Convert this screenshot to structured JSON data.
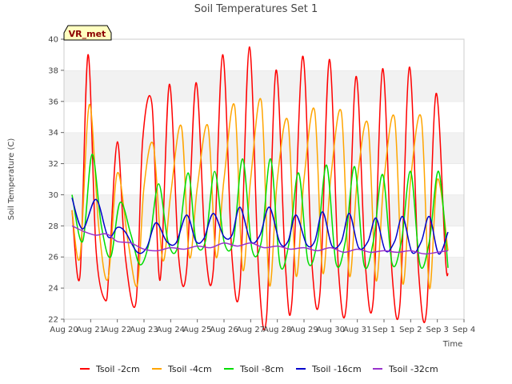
{
  "chart_data": {
    "type": "line",
    "title": "Soil Temperatures Set 1",
    "xlabel": "Time",
    "ylabel": "Soil Temperature (C)",
    "ylim": [
      22,
      40
    ],
    "yticks": [
      22,
      24,
      26,
      28,
      30,
      32,
      34,
      36,
      38,
      40
    ],
    "xlim": [
      0,
      15
    ],
    "xtick_labels": [
      "Aug 20",
      "Aug 21",
      "Aug 22",
      "Aug 23",
      "Aug 24",
      "Aug 25",
      "Aug 26",
      "Aug 27",
      "Aug 28",
      "Aug 29",
      "Aug 30",
      "Aug 31",
      "Sep 1",
      "Sep 2",
      "Sep 3",
      "Sep 4"
    ],
    "grid": "horizontal bands",
    "legend_position": "bottom",
    "annotation": "VR_met",
    "x_units": "days since Aug 20",
    "series": [
      {
        "name": "Tsoil -2cm",
        "color": "#ff0000",
        "x": [
          0.3,
          0.6,
          0.9,
          1.2,
          1.55,
          1.7,
          2.0,
          2.3,
          2.7,
          2.95,
          3.3,
          3.6,
          3.95,
          4.3,
          4.6,
          4.95,
          5.3,
          5.6,
          5.95,
          6.3,
          6.6,
          6.95,
          7.3,
          7.6,
          7.95,
          8.3,
          8.55,
          8.95,
          9.3,
          9.6,
          9.95,
          10.3,
          10.6,
          10.95,
          11.3,
          11.6,
          11.95,
          12.3,
          12.6,
          12.95,
          13.3,
          13.6,
          13.95,
          14.3,
          14.4
        ],
        "values": [
          29.0,
          24.8,
          39.0,
          26.5,
          23.2,
          25.5,
          33.4,
          26.0,
          23.1,
          33.5,
          35.8,
          24.5,
          37.1,
          26.0,
          25.2,
          37.2,
          26.5,
          25.2,
          39.0,
          26.0,
          24.2,
          39.5,
          25.0,
          22.2,
          38.0,
          25.5,
          23.2,
          38.9,
          25.5,
          23.7,
          38.7,
          25.0,
          23.1,
          37.6,
          25.5,
          23.3,
          38.1,
          25.0,
          23.0,
          38.2,
          25.0,
          22.6,
          36.5,
          26.0,
          24.9
        ]
      },
      {
        "name": "Tsoil -4cm",
        "color": "#ffa500",
        "x": [
          0.3,
          0.6,
          0.95,
          1.3,
          1.65,
          2.0,
          2.4,
          2.75,
          3.0,
          3.35,
          3.7,
          4.0,
          4.4,
          4.7,
          5.0,
          5.4,
          5.7,
          6.0,
          6.4,
          6.7,
          7.0,
          7.4,
          7.7,
          8.0,
          8.4,
          8.7,
          9.0,
          9.4,
          9.7,
          10.0,
          10.4,
          10.7,
          11.0,
          11.4,
          11.7,
          12.0,
          12.4,
          12.7,
          13.0,
          13.4,
          13.7,
          14.0,
          14.4
        ],
        "values": [
          29.0,
          26.0,
          35.8,
          28.0,
          24.6,
          31.4,
          27.0,
          24.2,
          30.5,
          33.2,
          25.8,
          30.0,
          34.4,
          26.0,
          30.5,
          34.4,
          26.0,
          31.0,
          35.7,
          25.2,
          31.0,
          36.0,
          24.2,
          31.0,
          34.7,
          24.8,
          31.0,
          35.4,
          25.0,
          31.0,
          35.3,
          24.8,
          31.0,
          34.5,
          24.5,
          31.0,
          34.9,
          24.3,
          31.0,
          34.9,
          24.0,
          31.0,
          26.4
        ]
      },
      {
        "name": "Tsoil -8cm",
        "color": "#00dd00",
        "x": [
          0.3,
          0.7,
          1.05,
          1.4,
          1.75,
          2.1,
          2.5,
          2.85,
          3.2,
          3.55,
          3.9,
          4.25,
          4.65,
          4.95,
          5.3,
          5.65,
          6.0,
          6.35,
          6.7,
          7.05,
          7.4,
          7.75,
          8.1,
          8.45,
          8.8,
          9.15,
          9.5,
          9.85,
          10.2,
          10.55,
          10.9,
          11.25,
          11.6,
          11.95,
          12.3,
          12.65,
          13.0,
          13.35,
          13.7,
          14.05,
          14.4
        ],
        "values": [
          30.0,
          27.0,
          32.6,
          28.0,
          26.0,
          29.5,
          27.5,
          25.5,
          27.0,
          30.7,
          27.0,
          26.6,
          31.4,
          27.0,
          27.0,
          31.5,
          27.0,
          27.0,
          32.3,
          26.5,
          27.0,
          32.3,
          25.5,
          27.0,
          31.4,
          25.7,
          27.0,
          31.9,
          25.6,
          27.0,
          31.8,
          25.5,
          27.0,
          31.3,
          25.6,
          27.0,
          31.5,
          25.5,
          27.0,
          31.5,
          25.3
        ]
      },
      {
        "name": "Tsoil -16cm",
        "color": "#0000cc",
        "x": [
          0.3,
          0.7,
          1.2,
          1.65,
          2.0,
          2.3,
          2.75,
          3.1,
          3.45,
          3.85,
          4.2,
          4.6,
          4.95,
          5.25,
          5.6,
          6.0,
          6.3,
          6.6,
          7.0,
          7.35,
          7.7,
          8.1,
          8.4,
          8.7,
          9.1,
          9.4,
          9.7,
          10.05,
          10.4,
          10.7,
          11.05,
          11.4,
          11.7,
          12.05,
          12.4,
          12.7,
          13.05,
          13.4,
          13.7,
          14.05,
          14.4
        ],
        "values": [
          29.8,
          27.8,
          29.7,
          27.3,
          27.9,
          27.6,
          26.3,
          26.6,
          28.2,
          27.0,
          26.9,
          28.7,
          27.0,
          27.2,
          28.8,
          27.3,
          27.4,
          29.2,
          27.0,
          27.4,
          29.2,
          26.9,
          27.0,
          28.7,
          26.8,
          27.0,
          28.9,
          26.7,
          27.0,
          28.8,
          26.6,
          27.0,
          28.5,
          26.4,
          27.0,
          28.6,
          26.3,
          27.0,
          28.6,
          26.2,
          27.6
        ]
      },
      {
        "name": "Tsoil -32cm",
        "color": "#9932cc",
        "x": [
          0.3,
          0.8,
          1.2,
          1.5,
          1.7,
          2.0,
          2.5,
          3.0,
          3.5,
          4.0,
          4.5,
          5.0,
          5.5,
          6.0,
          6.5,
          7.0,
          7.5,
          8.0,
          8.5,
          9.0,
          9.5,
          10.0,
          10.5,
          11.0,
          11.5,
          12.0,
          12.5,
          13.0,
          13.5,
          14.0,
          14.4
        ],
        "values": [
          28.0,
          27.6,
          27.4,
          27.5,
          27.4,
          27.0,
          26.9,
          26.5,
          26.4,
          26.6,
          26.5,
          26.7,
          26.6,
          26.9,
          26.7,
          26.9,
          26.6,
          26.7,
          26.5,
          26.6,
          26.4,
          26.6,
          26.3,
          26.5,
          26.3,
          26.4,
          26.3,
          26.4,
          26.2,
          26.3,
          26.4
        ]
      }
    ]
  }
}
